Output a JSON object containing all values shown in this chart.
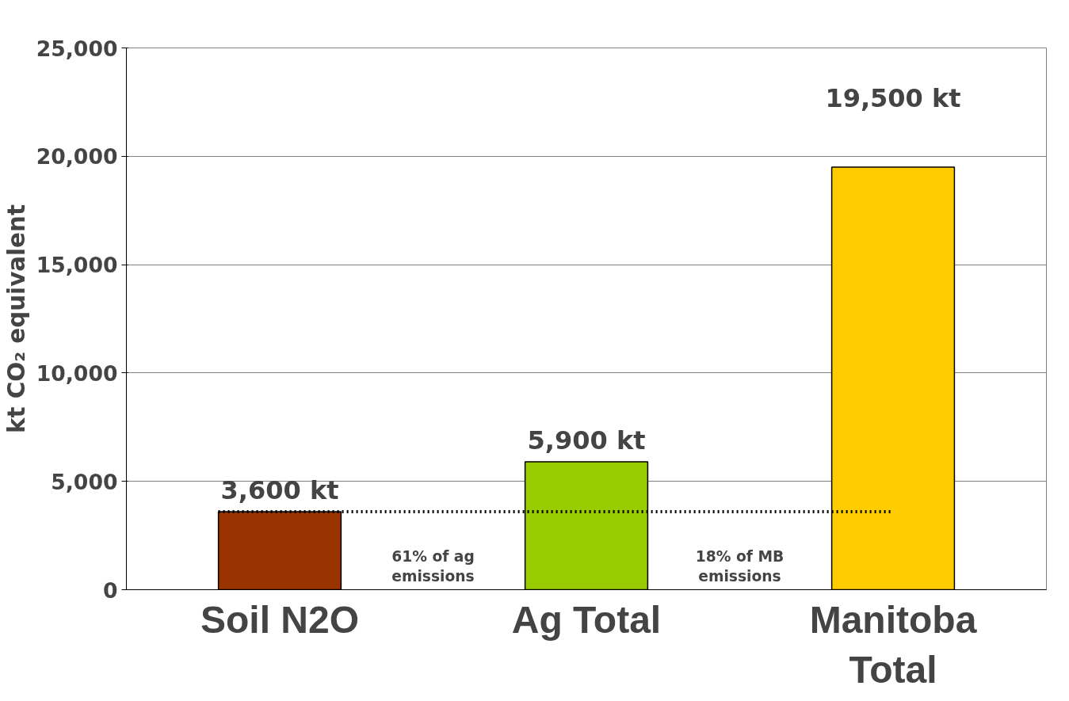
{
  "chart_data": {
    "type": "bar",
    "ylabel": "kt CO₂ equivalent",
    "categories": [
      "Soil N2O",
      "Ag Total",
      "Manitoba Total"
    ],
    "values": [
      3600,
      5900,
      19500
    ],
    "colors": [
      "#993300",
      "#99cc00",
      "#ffcc00"
    ],
    "value_labels": [
      "3,600 kt",
      "5,900 kt",
      "19,500 kt"
    ],
    "ylim": [
      0,
      25000
    ],
    "yticks": [
      {
        "value": 0,
        "label": "0"
      },
      {
        "value": 5000,
        "label": "5,000"
      },
      {
        "value": 10000,
        "label": "10,000"
      },
      {
        "value": 15000,
        "label": "15,000"
      },
      {
        "value": 20000,
        "label": "20,000"
      },
      {
        "value": 25000,
        "label": "25,000"
      }
    ],
    "grid": "y",
    "ref_lines": [
      {
        "axis": "y",
        "value": 3600,
        "line_style": "dotted",
        "color": "#000000"
      }
    ],
    "annotations": [
      "61% of ag emissions",
      "18% of MB emissions"
    ]
  }
}
